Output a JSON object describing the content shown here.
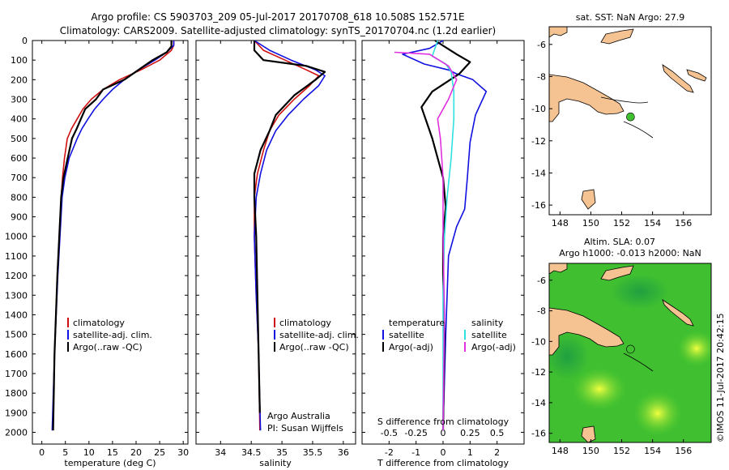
{
  "colors": {
    "climatology": "#d01010",
    "satellite": "#1010e0",
    "argo": "#000000",
    "satellite_salinity": "#30e0e0",
    "argo_salinity": "#e030e0",
    "land": "#f5c292",
    "map_sea": "#40c030"
  },
  "header": {
    "line1": "Argo profile: CS 5903703_209 05-Jul-2017 20170708_618 10.508S 152.571E",
    "line2": "Climatology: CARS2009. Satellite-adjusted climatology: synTS_20170704.nc (1.2d earlier)"
  },
  "chart_data": [
    {
      "type": "line",
      "name": "temperature-profile",
      "xlabel": "temperature (deg C)",
      "ylabel": "",
      "xlim": [
        -2,
        31
      ],
      "ylim": [
        0,
        2060
      ],
      "y_inverted": true,
      "xticks": [
        0,
        5,
        10,
        15,
        20,
        25,
        30
      ],
      "yticks": [
        0,
        100,
        200,
        300,
        400,
        500,
        600,
        700,
        800,
        900,
        1000,
        1100,
        1200,
        1300,
        1400,
        1500,
        1600,
        1700,
        1800,
        1900,
        2000
      ],
      "legend": [
        "climatology",
        "satellite-adj. clim.",
        "Argo(..raw -QC)"
      ],
      "series": [
        {
          "name": "climatology",
          "color": "#d01010",
          "x": [
            28,
            28,
            27.5,
            25,
            21,
            16.5,
            13,
            10.5,
            8.7,
            7.5,
            6.3,
            5.4,
            4.8,
            4.4,
            4.1,
            3.3,
            2.7,
            2.3
          ],
          "y": [
            0,
            25,
            50,
            100,
            150,
            200,
            250,
            300,
            350,
            400,
            450,
            500,
            600,
            700,
            800,
            1200,
            1600,
            1990
          ]
        },
        {
          "name": "satellite-adj. clim.",
          "color": "#1010e0",
          "x": [
            28,
            28,
            26.5,
            24,
            20.5,
            17.5,
            15,
            13,
            11.2,
            9.8,
            8.5,
            7.5,
            5.8,
            4.9,
            4.3,
            3.4,
            2.7,
            2.2
          ],
          "y": [
            0,
            25,
            60,
            100,
            150,
            200,
            250,
            300,
            350,
            400,
            450,
            500,
            600,
            700,
            800,
            1200,
            1600,
            1990
          ]
        },
        {
          "name": "Argo(..raw -QC)",
          "color": "#000000",
          "x": [
            27.5,
            27.5,
            26.5,
            23.5,
            20.5,
            17.5,
            13,
            11.5,
            9.2,
            8.3,
            7.4,
            6.4,
            5.5,
            4.6,
            4.1,
            3.3,
            2.7,
            2.4
          ],
          "y": [
            0,
            30,
            60,
            100,
            150,
            200,
            250,
            300,
            350,
            400,
            450,
            500,
            600,
            700,
            800,
            1200,
            1600,
            1990
          ]
        }
      ]
    },
    {
      "type": "line",
      "name": "salinity-profile",
      "xlabel": "salinity",
      "xlim": [
        33.6,
        36.2
      ],
      "ylim": [
        0,
        2060
      ],
      "y_inverted": true,
      "xticks": [
        34,
        34.5,
        35,
        35.5,
        36
      ],
      "legend": [
        "climatology",
        "satellite-adj. clim.",
        "Argo(..raw -QC)"
      ],
      "annotation": [
        "Argo Australia",
        "PI: Susan Wijffels"
      ],
      "series": [
        {
          "name": "climatology",
          "color": "#d01010",
          "x": [
            34.55,
            34.7,
            35.05,
            35.4,
            35.6,
            35.45,
            35.2,
            34.95,
            34.8,
            34.7,
            34.6,
            34.55,
            34.55,
            34.58,
            34.62,
            34.64
          ],
          "y": [
            0,
            50,
            100,
            150,
            180,
            230,
            300,
            380,
            460,
            560,
            680,
            800,
            1000,
            1300,
            1600,
            1990
          ]
        },
        {
          "name": "satellite-adj. clim.",
          "color": "#1010e0",
          "x": [
            34.55,
            34.8,
            35.15,
            35.55,
            35.7,
            35.6,
            35.35,
            35.1,
            34.9,
            34.75,
            34.65,
            34.58,
            34.55,
            34.58,
            34.62,
            34.65
          ],
          "y": [
            0,
            50,
            100,
            150,
            180,
            230,
            300,
            380,
            460,
            560,
            680,
            800,
            1000,
            1300,
            1600,
            1990
          ]
        },
        {
          "name": "Argo(..raw -QC)",
          "color": "#000000",
          "x": [
            34.55,
            34.55,
            34.7,
            35.4,
            35.7,
            35.55,
            35.2,
            34.9,
            34.8,
            34.65,
            34.55,
            34.55,
            34.58,
            34.6,
            34.62,
            34.64
          ],
          "y": [
            0,
            50,
            100,
            130,
            160,
            200,
            280,
            380,
            460,
            560,
            680,
            800,
            1000,
            1300,
            1600,
            1900
          ]
        }
      ]
    },
    {
      "type": "line",
      "name": "difference-profile",
      "xlabel": "T difference from climatology",
      "xlabel_top": "S difference from climatology",
      "xlim": [
        -3,
        3
      ],
      "ylim": [
        0,
        2060
      ],
      "y_inverted": true,
      "xticks": [
        -2,
        -1,
        0,
        1,
        2
      ],
      "xticks_s": [
        {
          "pos": -2,
          "label": "-0.5"
        },
        {
          "pos": -1,
          "label": "-0.25"
        },
        {
          "pos": 0,
          "label": "0"
        },
        {
          "pos": 1,
          "label": "0.25"
        },
        {
          "pos": 2,
          "label": "0.5"
        }
      ],
      "legend_left_title": "temperature",
      "legend_right_title": "salinity",
      "legend": [
        "satellite",
        "Argo(-adj)",
        "satellite",
        "Argo(-adj)"
      ],
      "series": [
        {
          "name": "T satellite",
          "color": "#1010e0",
          "x": [
            0,
            -0.5,
            -1.5,
            -0.7,
            0.2,
            0.5,
            1.1,
            1.6,
            1.2,
            1.0,
            0.9,
            0.8,
            0.5,
            0.2,
            0.1,
            0
          ],
          "y": [
            0,
            40,
            70,
            120,
            150,
            170,
            200,
            260,
            380,
            520,
            700,
            860,
            950,
            1100,
            1500,
            1990
          ]
        },
        {
          "name": "T Argo(-adj)",
          "color": "#000000",
          "x": [
            -0.3,
            0.5,
            1.0,
            0.6,
            -0.4,
            -0.8,
            -0.6,
            -0.4,
            -0.2,
            0.0,
            0.1,
            0.0,
            0.0,
            0.05,
            0.0
          ],
          "y": [
            0,
            70,
            110,
            170,
            260,
            340,
            420,
            500,
            600,
            700,
            850,
            1000,
            1200,
            1500,
            1990
          ]
        },
        {
          "name": "S satellite",
          "color": "#30e0e0",
          "x": [
            -0.2,
            -0.4,
            0.1,
            0.3,
            0.4,
            0.4,
            0.3,
            0.15,
            0.05,
            0.0,
            0.0
          ],
          "y": [
            0,
            80,
            120,
            160,
            260,
            400,
            600,
            800,
            1000,
            1300,
            1990
          ]
        },
        {
          "name": "S Argo(-adj)",
          "color": "#e030e0",
          "x": [
            -1.8,
            -0.5,
            0.2,
            0.5,
            0.2,
            -0.2,
            -0.1,
            0.0,
            0.0,
            0.05,
            0.0
          ],
          "y": [
            60,
            70,
            130,
            200,
            300,
            400,
            500,
            700,
            1000,
            1400,
            1990
          ]
        }
      ]
    },
    {
      "type": "heatmap",
      "name": "sst-map",
      "title": "sat. SST: NaN Argo: 27.9",
      "xticks": [
        148,
        150,
        152,
        154,
        156
      ],
      "yticks": [
        -6,
        -8,
        -10,
        -12,
        -14,
        -16
      ],
      "xlim": [
        147.3,
        157.8
      ],
      "ylim": [
        -16.6,
        -4.9
      ],
      "marker": {
        "lon": 152.571,
        "lat": -10.508
      }
    },
    {
      "type": "heatmap",
      "name": "sla-map",
      "title_line1": "Altim. SLA: 0.07",
      "title_line2": "Argo h1000: -0.013 h2000: NaN",
      "xticks": [
        148,
        150,
        152,
        154,
        156
      ],
      "yticks": [
        -6,
        -8,
        -10,
        -12,
        -14,
        -16
      ],
      "xlim": [
        147.3,
        157.8
      ],
      "ylim": [
        -16.6,
        -4.9
      ],
      "marker": {
        "lon": 152.571,
        "lat": -10.508
      }
    }
  ],
  "footer": {
    "stamp": "©IMOS 11-Jul-2017 20:42:15"
  }
}
